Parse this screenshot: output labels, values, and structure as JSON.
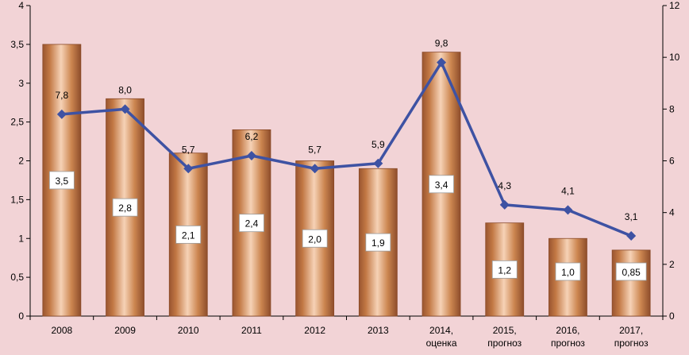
{
  "chart_data": {
    "type": "bar+line",
    "categories": [
      [
        "2008"
      ],
      [
        "2009"
      ],
      [
        "2010"
      ],
      [
        "2011"
      ],
      [
        "2012"
      ],
      [
        "2013"
      ],
      [
        "2014,",
        "оценка"
      ],
      [
        "2015,",
        "прогноз"
      ],
      [
        "2016,",
        "прогноз"
      ],
      [
        "2017,",
        "прогноз"
      ]
    ],
    "bar_series": {
      "axis": "left",
      "values": [
        3.5,
        2.8,
        2.1,
        2.4,
        2.0,
        1.9,
        3.4,
        1.2,
        1.0,
        0.85
      ],
      "labels": [
        "3,5",
        "2,8",
        "2,1",
        "2,4",
        "2,0",
        "1,9",
        "3,4",
        "1,2",
        "1,0",
        "0,85"
      ],
      "color": "#c9804f"
    },
    "line_series": {
      "axis": "right",
      "values": [
        7.8,
        8.0,
        5.7,
        6.2,
        5.7,
        5.9,
        9.8,
        4.3,
        4.1,
        3.1
      ],
      "labels": [
        "7,8",
        "8,0",
        "5,7",
        "6,2",
        "5,7",
        "5,9",
        "9,8",
        "4,3",
        "4,1",
        "3,1"
      ],
      "color": "#3e52a3",
      "marker": "diamond"
    },
    "y_left": {
      "min": 0,
      "max": 4,
      "ticks": [
        "0",
        "0,5",
        "1",
        "1,5",
        "2",
        "2,5",
        "3",
        "3,5",
        "4"
      ]
    },
    "y_right": {
      "min": 0,
      "max": 12,
      "ticks": [
        "0",
        "2",
        "4",
        "6",
        "8",
        "10",
        "12"
      ]
    },
    "grid": false,
    "legend": "none",
    "background": "#f2d3d6"
  }
}
